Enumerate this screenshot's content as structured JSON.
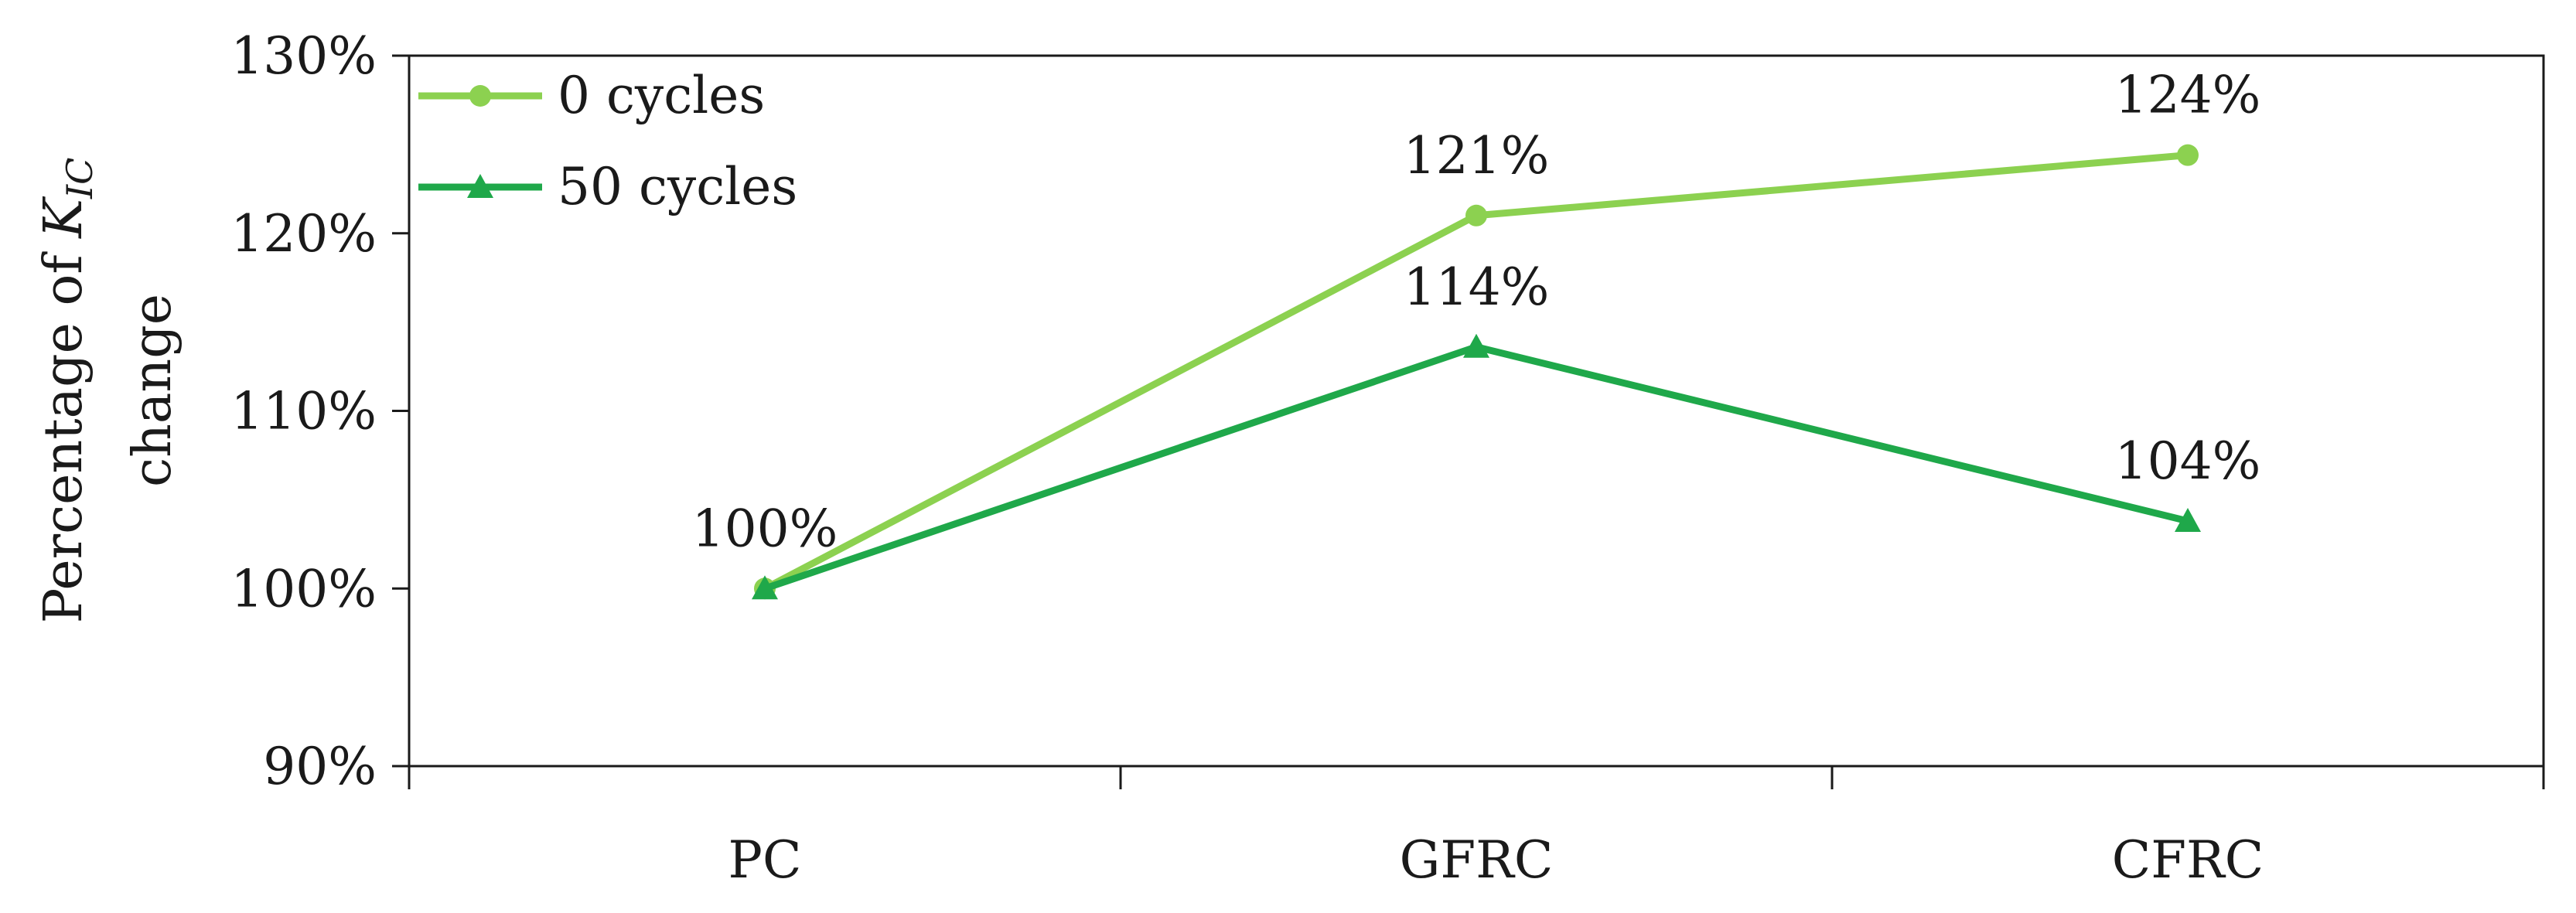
{
  "chart_data": {
    "type": "line",
    "categories": [
      "PC",
      "GFRC",
      "CFRC"
    ],
    "ylim": [
      0.9,
      1.3
    ],
    "yticks": [
      "90%",
      "100%",
      "110%",
      "120%",
      "130%"
    ],
    "ylabel": {
      "line1_prefix": "Percentage of ",
      "k_symbol": "K",
      "k_subscript": "IC",
      "line2": "change"
    },
    "grid": false,
    "legend_position": "top-left",
    "series": [
      {
        "name": "0 cycles",
        "marker": "circle",
        "color": "#8cd150",
        "values": [
          1.0,
          1.21,
          1.244
        ],
        "labels": [
          "100%",
          "121%",
          "124%"
        ]
      },
      {
        "name": "50 cycles",
        "marker": "triangle",
        "color": "#1fa84a",
        "values": [
          1.0,
          1.136,
          1.038
        ],
        "labels": [
          "",
          "114%",
          "104%"
        ]
      }
    ]
  }
}
